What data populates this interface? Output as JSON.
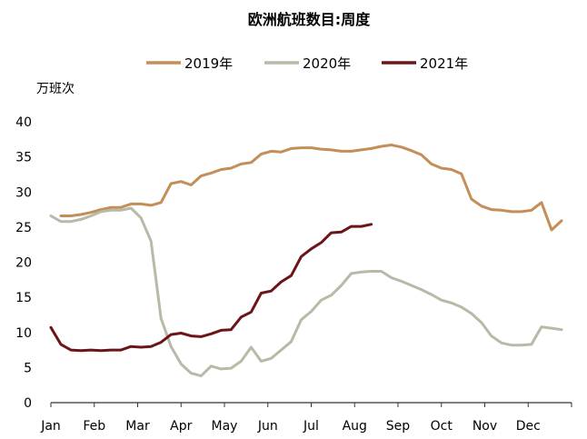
{
  "chart_data": {
    "type": "line",
    "title": "欧洲航班数目:周度",
    "ylabel": "万班次",
    "xlabel": "",
    "ylim": [
      0,
      40
    ],
    "yticks": [
      0,
      5,
      10,
      15,
      20,
      25,
      30,
      35,
      40
    ],
    "x_axis": {
      "type": "week",
      "weeks_in_year": 52
    },
    "months": [
      "Jan",
      "Feb",
      "Mar",
      "Apr",
      "May",
      "Jun",
      "Jul",
      "Aug",
      "Sep",
      "Oct",
      "Nov",
      "Dec"
    ],
    "grid": false,
    "legend_position": "top-center",
    "series": [
      {
        "name": "2019年",
        "color": "#c38e57",
        "x": [
          1,
          2,
          3,
          4,
          5,
          6,
          7,
          8,
          9,
          10,
          11,
          12,
          13,
          14,
          15,
          16,
          17,
          18,
          19,
          20,
          21,
          22,
          23,
          24,
          25,
          26,
          27,
          28,
          29,
          30,
          31,
          32,
          33,
          34,
          35,
          36,
          37,
          38,
          39,
          40,
          41,
          42,
          43,
          44,
          45,
          46,
          47,
          48,
          49,
          50,
          51,
          52
        ],
        "values": [
          26.6,
          26.6,
          26.8,
          27.1,
          27.5,
          27.8,
          27.8,
          28.3,
          28.3,
          28.1,
          28.5,
          31.2,
          31.5,
          31.0,
          32.3,
          32.7,
          33.2,
          33.4,
          34.0,
          34.2,
          35.4,
          35.8,
          35.7,
          36.2,
          36.3,
          36.3,
          36.1,
          36.0,
          35.8,
          35.8,
          36.0,
          36.2,
          36.5,
          36.7,
          36.4,
          35.9,
          35.3,
          34.0,
          33.4,
          33.2,
          32.6,
          29.0,
          28.0,
          27.5,
          27.4,
          27.2,
          27.2,
          27.4,
          28.5,
          24.6,
          25.9,
          null
        ]
      },
      {
        "name": "2020年",
        "color": "#b8b9a6",
        "x": [
          0,
          1,
          2,
          3,
          4,
          5,
          6,
          7,
          8,
          9,
          10,
          11,
          12,
          13,
          14,
          15,
          16,
          17,
          18,
          19,
          20,
          21,
          22,
          23,
          24,
          25,
          26,
          27,
          28,
          29,
          30,
          31,
          32,
          33,
          34,
          35,
          36,
          37,
          38,
          39,
          40,
          41,
          42,
          43,
          44,
          45,
          46,
          47,
          48,
          49,
          50,
          51,
          52
        ],
        "values": [
          26.6,
          25.8,
          25.8,
          26.1,
          26.6,
          27.2,
          27.4,
          27.4,
          27.7,
          26.3,
          23.0,
          12.0,
          8.0,
          5.5,
          4.2,
          3.8,
          5.2,
          4.8,
          4.9,
          5.9,
          7.9,
          5.9,
          6.3,
          7.5,
          8.7,
          11.8,
          13.0,
          14.6,
          15.3,
          16.7,
          18.4,
          18.6,
          18.7,
          18.7,
          17.8,
          17.3,
          16.7,
          16.1,
          15.4,
          14.6,
          14.2,
          13.6,
          12.7,
          11.4,
          9.5,
          8.5,
          8.2,
          8.2,
          8.3,
          10.8,
          10.6,
          10.4,
          null
        ]
      },
      {
        "name": "2021年",
        "color": "#6b1518",
        "x": [
          0,
          1,
          2,
          3,
          4,
          5,
          6,
          7,
          8,
          9,
          10,
          11,
          12,
          13,
          14,
          15,
          16,
          17,
          18,
          19,
          20,
          21,
          22,
          23,
          24,
          25,
          26,
          27,
          28,
          29,
          30,
          31,
          32
        ],
        "values": [
          10.7,
          8.3,
          7.5,
          7.4,
          7.5,
          7.4,
          7.5,
          7.5,
          8.0,
          7.9,
          8.0,
          8.6,
          9.7,
          9.9,
          9.5,
          9.4,
          9.8,
          10.3,
          10.4,
          12.2,
          12.9,
          15.6,
          15.9,
          17.2,
          18.1,
          20.8,
          21.9,
          22.8,
          24.2,
          24.3,
          25.1,
          25.1,
          25.4
        ]
      }
    ]
  }
}
